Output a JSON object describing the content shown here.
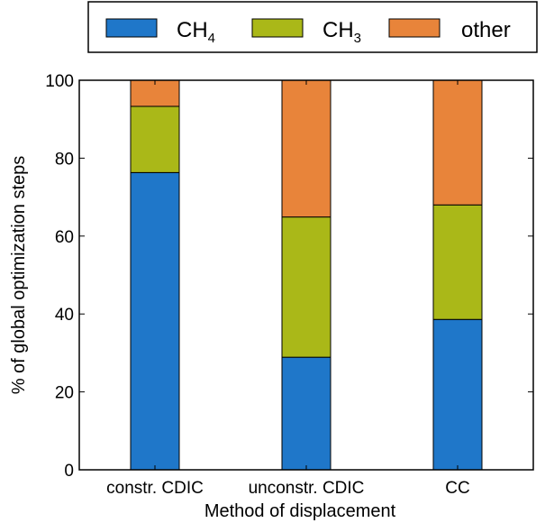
{
  "chart_data": {
    "type": "bar",
    "stacked": true,
    "categories": [
      "constr. CDIC",
      "unconstr. CDIC",
      "CC"
    ],
    "series": [
      {
        "name": "CH4",
        "name_main": "CH",
        "name_sub": "4",
        "color": "#1f77c9",
        "values": [
          76.3,
          28.9,
          38.6
        ]
      },
      {
        "name": "CH3",
        "name_main": "CH",
        "name_sub": "3",
        "color": "#aab818",
        "values": [
          17.0,
          36.0,
          29.4
        ]
      },
      {
        "name": "other",
        "name_main": "other",
        "name_sub": "",
        "color": "#e8843a",
        "values": [
          6.7,
          35.1,
          32.0
        ]
      }
    ],
    "xlabel": "Method of displacement",
    "ylabel": "% of global optimization steps",
    "ylim": [
      0,
      100
    ],
    "yticks": [
      0,
      20,
      40,
      60,
      80,
      100
    ],
    "grid": false,
    "legend_position": "top"
  }
}
